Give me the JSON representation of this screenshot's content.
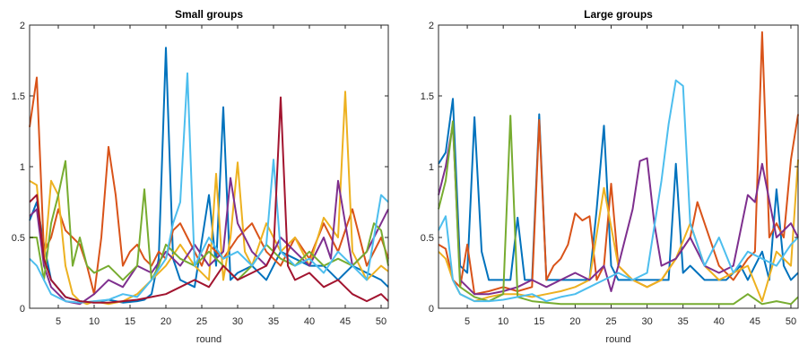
{
  "chart_data": [
    {
      "type": "line",
      "title": "Small groups",
      "xlabel": "round",
      "ylabel": "",
      "xlim": [
        1,
        51
      ],
      "ylim": [
        0,
        2
      ],
      "xticks": [
        5,
        10,
        15,
        20,
        25,
        30,
        35,
        40,
        45,
        50
      ],
      "yticks": [
        0,
        0.5,
        1,
        1.5,
        2
      ],
      "ytick_labels": [
        "0",
        "0.5",
        "1",
        "1.5",
        "2"
      ],
      "grid": false,
      "series": [
        {
          "color": "#0072BD",
          "x": [
            1,
            2,
            3,
            4,
            6,
            8,
            10,
            12,
            14,
            16,
            17,
            18,
            19,
            20,
            21,
            22,
            24,
            26,
            27,
            28,
            29,
            30,
            32,
            34,
            36,
            38,
            40,
            42,
            44,
            46,
            48,
            50,
            51
          ],
          "values": [
            0.62,
            0.75,
            0.45,
            0.2,
            0.08,
            0.05,
            0.04,
            0.06,
            0.04,
            0.05,
            0.06,
            0.1,
            0.35,
            1.84,
            0.35,
            0.2,
            0.15,
            0.8,
            0.3,
            1.42,
            0.2,
            0.25,
            0.3,
            0.2,
            0.4,
            0.35,
            0.3,
            0.3,
            0.2,
            0.3,
            0.25,
            0.2,
            0.15
          ]
        },
        {
          "color": "#D95319",
          "x": [
            1,
            2,
            3,
            4,
            5,
            6,
            7,
            8,
            9,
            10,
            11,
            12,
            13,
            14,
            15,
            16,
            17,
            18,
            19,
            20,
            21,
            22,
            23,
            24,
            25,
            26,
            28,
            30,
            32,
            34,
            36,
            38,
            40,
            42,
            44,
            46,
            48,
            50,
            51
          ],
          "values": [
            1.28,
            1.63,
            0.4,
            0.5,
            0.7,
            0.55,
            0.5,
            0.45,
            0.3,
            0.1,
            0.5,
            1.14,
            0.8,
            0.3,
            0.4,
            0.45,
            0.35,
            0.3,
            0.4,
            0.35,
            0.55,
            0.6,
            0.5,
            0.4,
            0.3,
            0.45,
            0.35,
            0.5,
            0.6,
            0.4,
            0.3,
            0.5,
            0.35,
            0.6,
            0.4,
            0.7,
            0.3,
            0.5,
            0.35
          ]
        },
        {
          "color": "#EDB120",
          "x": [
            1,
            2,
            3,
            4,
            5,
            6,
            7,
            8,
            9,
            10,
            12,
            14,
            16,
            18,
            20,
            22,
            24,
            26,
            27,
            28,
            29,
            30,
            31,
            32,
            34,
            36,
            38,
            40,
            42,
            44,
            45,
            46,
            48,
            50,
            51
          ],
          "values": [
            0.9,
            0.87,
            0.3,
            0.9,
            0.8,
            0.3,
            0.1,
            0.05,
            0.03,
            0.05,
            0.03,
            0.05,
            0.1,
            0.2,
            0.3,
            0.45,
            0.3,
            0.2,
            0.95,
            0.2,
            0.5,
            1.03,
            0.4,
            0.3,
            0.6,
            0.4,
            0.5,
            0.3,
            0.64,
            0.5,
            1.53,
            0.4,
            0.2,
            0.3,
            0.26
          ]
        },
        {
          "color": "#7E2F8E",
          "x": [
            1,
            2,
            3,
            4,
            6,
            8,
            10,
            12,
            14,
            16,
            18,
            20,
            22,
            24,
            26,
            28,
            29,
            30,
            32,
            34,
            36,
            38,
            40,
            42,
            43,
            44,
            46,
            48,
            50,
            51
          ],
          "values": [
            0.65,
            0.7,
            0.3,
            0.15,
            0.05,
            0.03,
            0.1,
            0.2,
            0.15,
            0.3,
            0.25,
            0.4,
            0.3,
            0.45,
            0.3,
            0.4,
            0.92,
            0.6,
            0.4,
            0.3,
            0.5,
            0.4,
            0.3,
            0.5,
            0.35,
            0.9,
            0.3,
            0.4,
            0.6,
            0.7
          ]
        },
        {
          "color": "#77AC30",
          "x": [
            1,
            2,
            3,
            4,
            5,
            6,
            7,
            8,
            9,
            10,
            12,
            14,
            16,
            17,
            18,
            19,
            20,
            22,
            24,
            26,
            28,
            30,
            32,
            34,
            36,
            38,
            40,
            42,
            44,
            46,
            48,
            49,
            50,
            51
          ],
          "values": [
            0.5,
            0.5,
            0.2,
            0.6,
            0.8,
            1.04,
            0.3,
            0.5,
            0.3,
            0.25,
            0.3,
            0.2,
            0.3,
            0.84,
            0.2,
            0.3,
            0.45,
            0.35,
            0.3,
            0.4,
            0.3,
            0.2,
            0.3,
            0.45,
            0.35,
            0.3,
            0.4,
            0.3,
            0.35,
            0.3,
            0.4,
            0.6,
            0.55,
            0.3
          ]
        },
        {
          "color": "#4DBEEE",
          "x": [
            1,
            2,
            3,
            4,
            6,
            8,
            10,
            12,
            14,
            16,
            18,
            20,
            21,
            22,
            23,
            24,
            26,
            28,
            30,
            32,
            34,
            35,
            36,
            38,
            40,
            42,
            44,
            46,
            48,
            50,
            51
          ],
          "values": [
            0.35,
            0.3,
            0.2,
            0.1,
            0.05,
            0.04,
            0.05,
            0.06,
            0.1,
            0.08,
            0.2,
            0.35,
            0.6,
            0.75,
            1.66,
            0.3,
            0.5,
            0.35,
            0.4,
            0.3,
            0.45,
            1.05,
            0.4,
            0.3,
            0.35,
            0.25,
            0.4,
            0.3,
            0.2,
            0.8,
            0.75
          ]
        },
        {
          "color": "#A2142F",
          "x": [
            1,
            2,
            3,
            4,
            6,
            8,
            10,
            12,
            14,
            16,
            18,
            20,
            22,
            24,
            26,
            28,
            30,
            32,
            34,
            35,
            36,
            37,
            38,
            40,
            42,
            44,
            46,
            48,
            50,
            51
          ],
          "values": [
            0.75,
            0.8,
            0.35,
            0.2,
            0.08,
            0.05,
            0.04,
            0.04,
            0.05,
            0.06,
            0.08,
            0.1,
            0.15,
            0.2,
            0.15,
            0.3,
            0.2,
            0.25,
            0.3,
            0.4,
            1.49,
            0.3,
            0.2,
            0.25,
            0.15,
            0.2,
            0.1,
            0.05,
            0.1,
            0.05
          ]
        }
      ]
    },
    {
      "type": "line",
      "title": "Large groups",
      "xlabel": "round",
      "ylabel": "",
      "xlim": [
        1,
        51
      ],
      "ylim": [
        0,
        2
      ],
      "xticks": [
        5,
        10,
        15,
        20,
        25,
        30,
        35,
        40,
        45,
        50
      ],
      "yticks": [
        0,
        0.5,
        1,
        1.5,
        2
      ],
      "ytick_labels": [
        "0",
        "0.5",
        "1",
        "1.5",
        "2"
      ],
      "grid": false,
      "series": [
        {
          "color": "#0072BD",
          "x": [
            1,
            2,
            3,
            4,
            5,
            6,
            7,
            8,
            9,
            10,
            11,
            12,
            13,
            14,
            15,
            16,
            17,
            18,
            19,
            20,
            21,
            22,
            23,
            24,
            25,
            26,
            27,
            28,
            29,
            30,
            31,
            32,
            33,
            34,
            35,
            36,
            37,
            38,
            39,
            40,
            41,
            42,
            43,
            44,
            45,
            46,
            47,
            48,
            49,
            50,
            51
          ],
          "values": [
            1.02,
            1.1,
            1.48,
            0.3,
            0.25,
            1.35,
            0.4,
            0.2,
            0.2,
            0.2,
            0.2,
            0.64,
            0.2,
            0.2,
            1.37,
            0.2,
            0.2,
            0.2,
            0.2,
            0.2,
            0.2,
            0.2,
            0.7,
            1.29,
            0.3,
            0.2,
            0.2,
            0.2,
            0.2,
            0.2,
            0.2,
            0.2,
            0.2,
            1.02,
            0.25,
            0.3,
            0.25,
            0.2,
            0.2,
            0.2,
            0.2,
            0.25,
            0.3,
            0.2,
            0.3,
            0.4,
            0.2,
            0.84,
            0.3,
            0.2,
            0.25
          ]
        },
        {
          "color": "#D95319",
          "x": [
            1,
            2,
            3,
            4,
            5,
            6,
            8,
            10,
            12,
            14,
            15,
            16,
            17,
            18,
            19,
            20,
            21,
            22,
            23,
            24,
            25,
            26,
            28,
            30,
            32,
            34,
            36,
            37,
            38,
            40,
            42,
            44,
            45,
            46,
            47,
            48,
            49,
            50,
            51
          ],
          "values": [
            0.45,
            0.42,
            0.2,
            0.15,
            0.45,
            0.1,
            0.12,
            0.15,
            0.12,
            0.15,
            1.33,
            0.2,
            0.3,
            0.35,
            0.45,
            0.67,
            0.62,
            0.65,
            0.2,
            0.3,
            0.88,
            0.3,
            0.2,
            0.15,
            0.2,
            0.35,
            0.5,
            0.75,
            0.6,
            0.3,
            0.2,
            0.35,
            0.4,
            1.95,
            0.5,
            0.6,
            0.5,
            1.05,
            1.37
          ]
        },
        {
          "color": "#EDB120",
          "x": [
            1,
            2,
            3,
            4,
            6,
            8,
            10,
            12,
            14,
            16,
            18,
            20,
            22,
            24,
            26,
            28,
            30,
            32,
            34,
            36,
            38,
            40,
            42,
            44,
            46,
            48,
            50,
            51
          ],
          "values": [
            0.4,
            0.35,
            0.2,
            0.1,
            0.05,
            0.08,
            0.1,
            0.1,
            0.08,
            0.1,
            0.12,
            0.15,
            0.2,
            0.85,
            0.3,
            0.2,
            0.15,
            0.2,
            0.35,
            0.6,
            0.3,
            0.2,
            0.25,
            0.3,
            0.05,
            0.4,
            0.3,
            1.05
          ]
        },
        {
          "color": "#7E2F8E",
          "x": [
            1,
            2,
            3,
            4,
            6,
            8,
            10,
            12,
            14,
            16,
            18,
            20,
            22,
            24,
            25,
            26,
            28,
            29,
            30,
            31,
            32,
            34,
            36,
            38,
            40,
            42,
            44,
            45,
            46,
            48,
            50,
            51
          ],
          "values": [
            0.8,
            1.0,
            1.3,
            0.2,
            0.1,
            0.1,
            0.12,
            0.15,
            0.2,
            0.15,
            0.2,
            0.25,
            0.2,
            0.3,
            0.12,
            0.3,
            0.7,
            1.04,
            1.06,
            0.6,
            0.3,
            0.35,
            0.5,
            0.3,
            0.25,
            0.3,
            0.8,
            0.75,
            1.02,
            0.5,
            0.6,
            0.5
          ]
        },
        {
          "color": "#77AC30",
          "x": [
            1,
            2,
            3,
            4,
            6,
            8,
            10,
            11,
            12,
            14,
            16,
            18,
            20,
            22,
            24,
            26,
            28,
            30,
            32,
            34,
            36,
            38,
            40,
            42,
            44,
            46,
            48,
            50,
            51
          ],
          "values": [
            0.7,
            0.9,
            1.32,
            0.15,
            0.08,
            0.05,
            0.1,
            1.36,
            0.08,
            0.05,
            0.04,
            0.03,
            0.03,
            0.03,
            0.03,
            0.03,
            0.03,
            0.03,
            0.03,
            0.03,
            0.03,
            0.03,
            0.03,
            0.03,
            0.1,
            0.03,
            0.05,
            0.03,
            0.08
          ]
        },
        {
          "color": "#4DBEEE",
          "x": [
            1,
            2,
            3,
            4,
            6,
            8,
            10,
            12,
            14,
            16,
            18,
            20,
            22,
            24,
            26,
            28,
            30,
            32,
            33,
            34,
            35,
            36,
            38,
            40,
            42,
            44,
            46,
            48,
            50,
            51
          ],
          "values": [
            0.55,
            0.65,
            0.2,
            0.1,
            0.05,
            0.05,
            0.06,
            0.08,
            0.1,
            0.05,
            0.08,
            0.1,
            0.15,
            0.2,
            0.25,
            0.2,
            0.25,
            0.9,
            1.3,
            1.61,
            1.57,
            0.6,
            0.3,
            0.5,
            0.25,
            0.4,
            0.35,
            0.3,
            0.45,
            0.5
          ]
        }
      ]
    }
  ]
}
